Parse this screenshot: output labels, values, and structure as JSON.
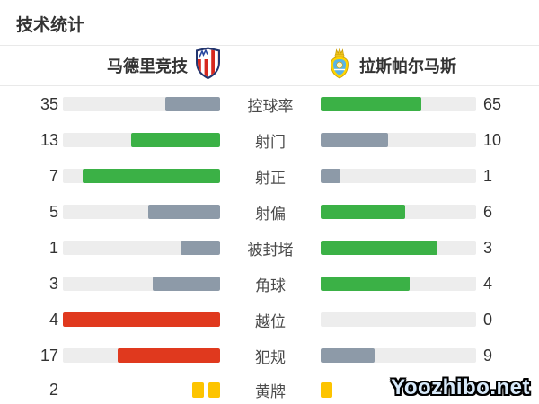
{
  "title": "技术统计",
  "header": {
    "home_team": "马德里竞技",
    "away_team": "拉斯帕尔马斯"
  },
  "watermark": "Yoozhibo.net",
  "colors": {
    "green": "#3bb146",
    "gray": "#8d9aa8",
    "red": "#e0391e",
    "track": "#ededed",
    "yellow": "#fdc400"
  },
  "chart_data": {
    "type": "bar",
    "orientation": "horizontal-paired",
    "title": "技术统计",
    "categories": [
      "控球率",
      "射门",
      "射正",
      "射偏",
      "被封堵",
      "角球",
      "越位",
      "犯规",
      "黄牌"
    ],
    "series": [
      {
        "name": "马德里竞技",
        "values": [
          35,
          13,
          7,
          5,
          1,
          3,
          4,
          17,
          2
        ]
      },
      {
        "name": "拉斯帕尔马斯",
        "values": [
          65,
          10,
          1,
          6,
          3,
          4,
          0,
          9,
          1
        ]
      }
    ],
    "rows": [
      {
        "label": "控球率",
        "home": 35,
        "away": 65,
        "home_pct": 35,
        "away_pct": 65,
        "home_color": "gray",
        "away_color": "green"
      },
      {
        "label": "射门",
        "home": 13,
        "away": 10,
        "home_pct": 56.5,
        "away_pct": 43.5,
        "home_color": "green",
        "away_color": "gray"
      },
      {
        "label": "射正",
        "home": 7,
        "away": 1,
        "home_pct": 87.5,
        "away_pct": 12.5,
        "home_color": "green",
        "away_color": "gray"
      },
      {
        "label": "射偏",
        "home": 5,
        "away": 6,
        "home_pct": 45.5,
        "away_pct": 54.5,
        "home_color": "gray",
        "away_color": "green"
      },
      {
        "label": "被封堵",
        "home": 1,
        "away": 3,
        "home_pct": 25,
        "away_pct": 75,
        "home_color": "gray",
        "away_color": "green"
      },
      {
        "label": "角球",
        "home": 3,
        "away": 4,
        "home_pct": 42.9,
        "away_pct": 57.1,
        "home_color": "gray",
        "away_color": "green"
      },
      {
        "label": "越位",
        "home": 4,
        "away": 0,
        "home_pct": 100,
        "away_pct": 0,
        "home_color": "red",
        "away_color": "green"
      },
      {
        "label": "犯规",
        "home": 17,
        "away": 9,
        "home_pct": 65.4,
        "away_pct": 34.6,
        "home_color": "red",
        "away_color": "gray"
      }
    ],
    "cards_row": {
      "label": "黄牌",
      "home_value": "2",
      "home_count": 2,
      "away_count": 1
    }
  }
}
